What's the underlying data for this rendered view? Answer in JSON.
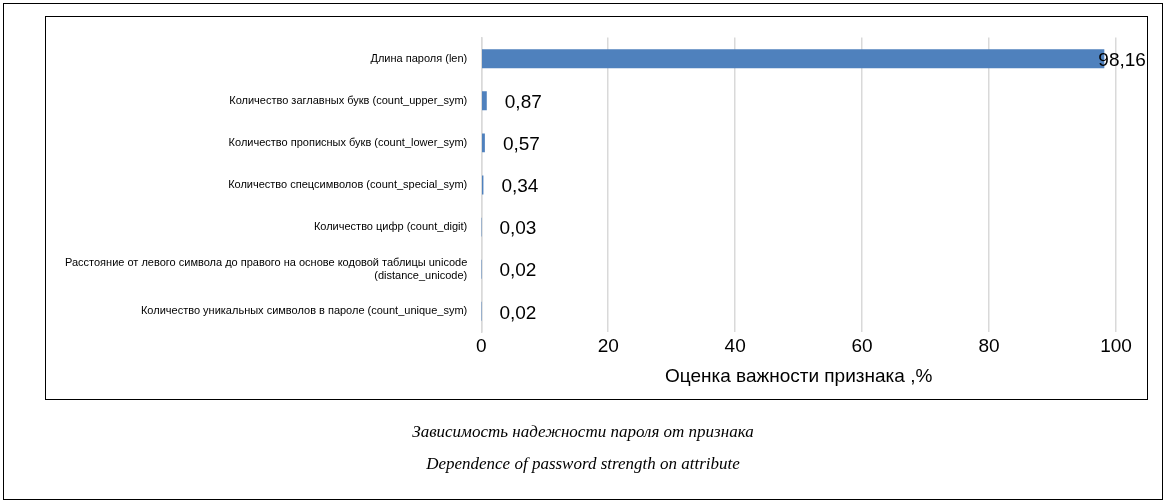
{
  "chart_data": {
    "type": "bar",
    "orientation": "horizontal",
    "categories": [
      "Длина пароля (len)",
      "Количество заглавных букв (count_upper_sym)",
      "Количество прописных букв (count_lower_sym)",
      "Количество спецсимволов (count_special_sym)",
      "Количество цифр (count_digit)",
      "Расстояние от левого символа до правого на основе кодовой таблицы unicode (distance_unicode)",
      "Количество уникальных символов в пароле (count_unique_sym)"
    ],
    "values": [
      98.16,
      0.87,
      0.57,
      0.34,
      0.03,
      0.02,
      0.02
    ],
    "value_labels": [
      "98,16",
      "0,87",
      "0,57",
      "0,34",
      "0,03",
      "0,02",
      "0,02"
    ],
    "color": "#4f81bd",
    "xlabel": "Оценка важности признака ,%",
    "xlim": [
      0,
      100
    ],
    "xticks": [
      0,
      20,
      40,
      60,
      80,
      100
    ],
    "grid": "x",
    "legend": false,
    "annotations": [
      "Зависимость надежности пароля от признака",
      "Dependence of password strength on attribute"
    ]
  }
}
